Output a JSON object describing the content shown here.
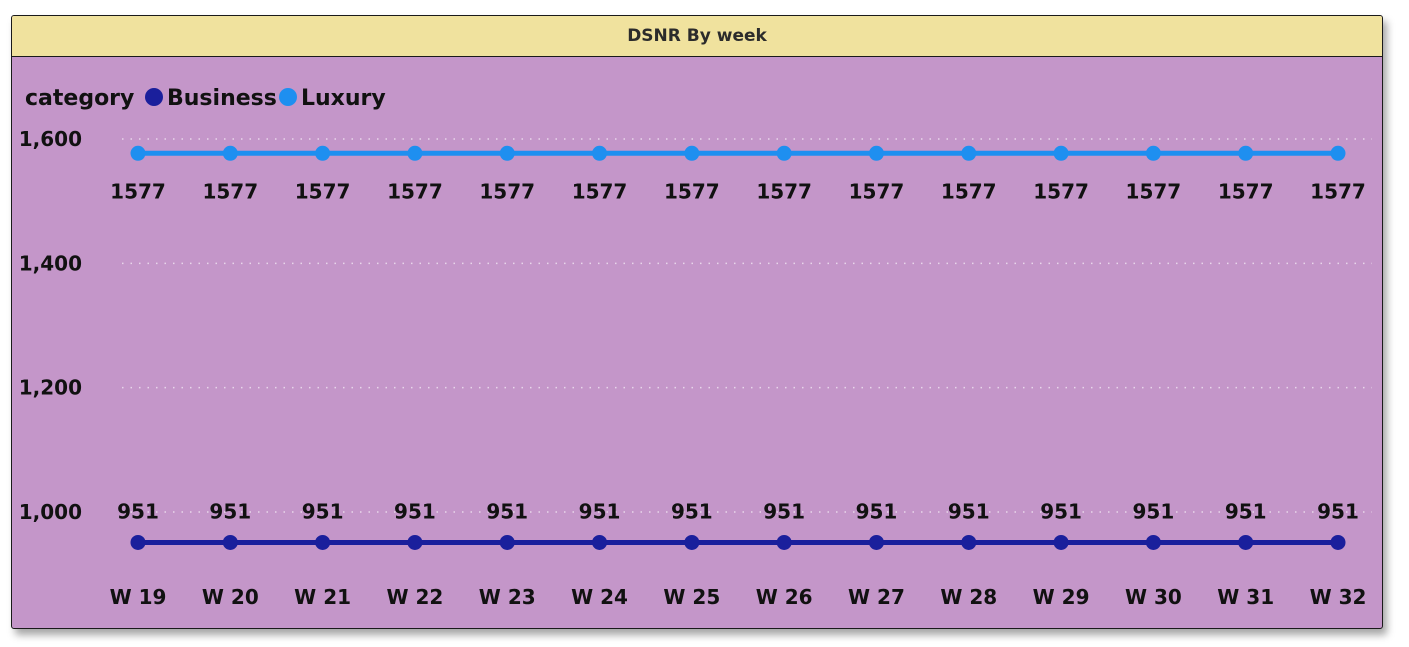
{
  "chart_data": {
    "type": "line",
    "title": "DSNR By week",
    "legend_title": "category",
    "legend_position": "top-left",
    "categories": [
      "W 19",
      "W 20",
      "W 21",
      "W 22",
      "W 23",
      "W 24",
      "W 25",
      "W 26",
      "W 27",
      "W 28",
      "W 29",
      "W 30",
      "W 31",
      "W 32"
    ],
    "series": [
      {
        "name": "Business",
        "color": "#1a1f9c",
        "values": [
          951,
          951,
          951,
          951,
          951,
          951,
          951,
          951,
          951,
          951,
          951,
          951,
          951,
          951
        ]
      },
      {
        "name": "Luxury",
        "color": "#1e8ff0",
        "values": [
          1577,
          1577,
          1577,
          1577,
          1577,
          1577,
          1577,
          1577,
          1577,
          1577,
          1577,
          1577,
          1577,
          1577
        ]
      }
    ],
    "yticks": [
      "1,000",
      "1,200",
      "1,400",
      "1,600"
    ],
    "ytick_values": [
      1000,
      1200,
      1400,
      1600
    ],
    "ylim": [
      905,
      1640
    ],
    "grid": true
  }
}
